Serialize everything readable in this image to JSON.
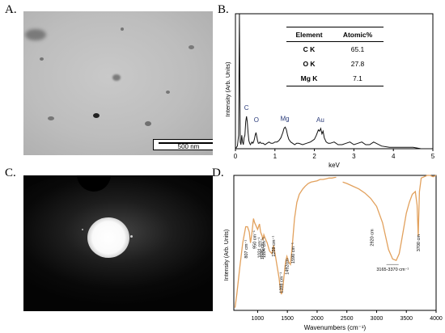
{
  "panels": {
    "a": {
      "letter": "A.",
      "scale_bar": "500 nm"
    },
    "b": {
      "letter": "B."
    },
    "c": {
      "letter": "C."
    },
    "d": {
      "letter": "D."
    }
  },
  "element_table": {
    "headers": [
      "Element",
      "Atomic%"
    ],
    "rows": [
      {
        "element": "C K",
        "value": "65.1"
      },
      {
        "element": "O K",
        "value": "27.8"
      },
      {
        "element": "Mg K",
        "value": "7.1"
      }
    ]
  },
  "colors": {
    "eds_line": "#111111",
    "ftir_line": "#e2a15d",
    "peak_label": "#2a3b7a"
  },
  "chart_data": [
    {
      "type": "line",
      "panel": "B",
      "xlabel": "keV",
      "ylabel": "Intensity (Arb. Units)",
      "xlim": [
        0,
        5
      ],
      "x_ticks": [
        "0",
        "1",
        "2",
        "3",
        "4",
        "5"
      ],
      "peak_labels": [
        {
          "label": "C",
          "x": 0.28,
          "y": 0.27
        },
        {
          "label": "O",
          "x": 0.53,
          "y": 0.18
        },
        {
          "label": "Mg",
          "x": 1.25,
          "y": 0.19
        },
        {
          "label": "Au",
          "x": 2.15,
          "y": 0.18
        }
      ],
      "x": [
        0.0,
        0.05,
        0.08,
        0.1,
        0.12,
        0.14,
        0.16,
        0.18,
        0.2,
        0.22,
        0.24,
        0.26,
        0.28,
        0.3,
        0.32,
        0.34,
        0.36,
        0.38,
        0.4,
        0.42,
        0.44,
        0.46,
        0.48,
        0.5,
        0.52,
        0.54,
        0.56,
        0.58,
        0.6,
        0.62,
        0.65,
        0.7,
        0.75,
        0.8,
        0.85,
        0.9,
        0.95,
        1.0,
        1.05,
        1.1,
        1.15,
        1.2,
        1.23,
        1.26,
        1.29,
        1.32,
        1.35,
        1.4,
        1.45,
        1.5,
        1.55,
        1.6,
        1.7,
        1.8,
        1.9,
        2.0,
        2.05,
        2.1,
        2.13,
        2.16,
        2.19,
        2.22,
        2.25,
        2.3,
        2.35,
        2.4,
        2.5,
        2.6,
        2.7,
        2.8,
        2.9,
        3.0,
        3.1,
        3.2,
        3.3,
        3.4,
        3.5,
        3.7,
        3.9,
        4.1,
        4.3,
        4.5,
        4.7,
        5.0
      ],
      "y": [
        0.0,
        0.02,
        0.1,
        1.0,
        0.05,
        0.03,
        0.1,
        0.05,
        0.03,
        0.08,
        0.1,
        0.2,
        0.24,
        0.2,
        0.12,
        0.06,
        0.04,
        0.03,
        0.04,
        0.05,
        0.04,
        0.05,
        0.07,
        0.1,
        0.12,
        0.09,
        0.06,
        0.04,
        0.04,
        0.05,
        0.04,
        0.04,
        0.03,
        0.04,
        0.05,
        0.04,
        0.04,
        0.05,
        0.05,
        0.06,
        0.08,
        0.12,
        0.15,
        0.16,
        0.14,
        0.1,
        0.07,
        0.05,
        0.04,
        0.03,
        0.04,
        0.04,
        0.03,
        0.04,
        0.05,
        0.07,
        0.1,
        0.14,
        0.13,
        0.15,
        0.11,
        0.13,
        0.08,
        0.05,
        0.04,
        0.04,
        0.05,
        0.03,
        0.03,
        0.04,
        0.05,
        0.03,
        0.04,
        0.05,
        0.03,
        0.03,
        0.05,
        0.02,
        0.01,
        0.01,
        0.01,
        0.01,
        0.0,
        0.0
      ]
    },
    {
      "type": "line",
      "panel": "D",
      "xlabel": "Wavenumbers (cm⁻¹)",
      "ylabel": "Intensity (Arb. Units)",
      "xlim": [
        600,
        4000
      ],
      "ylim": [
        0,
        1
      ],
      "x_ticks": [
        "1000",
        "1500",
        "2000",
        "2500",
        "3000",
        "3500",
        "4000"
      ],
      "peak_labels": [
        {
          "label": "807 cm⁻¹",
          "x": 807,
          "y": 0.54
        },
        {
          "label": "950 cm⁻¹",
          "x": 950,
          "y": 0.61
        },
        {
          "label": "1031 cm⁻¹",
          "x": 1031,
          "y": 0.56
        },
        {
          "label": "1076 cm⁻¹",
          "x": 1076,
          "y": 0.55
        },
        {
          "label": "1104 cm⁻¹",
          "x": 1104,
          "y": 0.56
        },
        {
          "label": "1269 cm⁻¹",
          "x": 1269,
          "y": 0.57
        },
        {
          "label": "1398 cm⁻¹",
          "x": 1398,
          "y": 0.3
        },
        {
          "label": "1492cm",
          "x": 1492,
          "y": 0.4
        },
        {
          "label": "1590 cm⁻¹",
          "x": 1590,
          "y": 0.52
        },
        {
          "label": "2920 cm",
          "x": 2920,
          "y": 0.62
        },
        {
          "label": "3165-3370 cm⁻¹",
          "x": 3270,
          "y": 0.34
        },
        {
          "label": "3700 cm",
          "x": 3700,
          "y": 0.58
        }
      ],
      "segments": [
        {
          "x": [
            620,
            650,
            700,
            750,
            800,
            830,
            860,
            880,
            900,
            930,
            950,
            970,
            1000,
            1031,
            1050,
            1076,
            1090,
            1104,
            1130,
            1160,
            1200,
            1240,
            1269,
            1300,
            1330,
            1360,
            1380,
            1398,
            1420,
            1450,
            1470,
            1492,
            1520,
            1550,
            1570,
            1590,
            1620,
            1660,
            1700,
            1760,
            1800,
            1850,
            1900,
            2000,
            2050,
            2100,
            2150,
            2200,
            2250,
            2300,
            2320
          ],
          "y": [
            0.02,
            0.12,
            0.32,
            0.5,
            0.62,
            0.62,
            0.58,
            0.5,
            0.56,
            0.68,
            0.65,
            0.63,
            0.6,
            0.64,
            0.58,
            0.55,
            0.52,
            0.56,
            0.53,
            0.5,
            0.44,
            0.42,
            0.48,
            0.4,
            0.32,
            0.24,
            0.16,
            0.12,
            0.15,
            0.28,
            0.36,
            0.4,
            0.36,
            0.34,
            0.42,
            0.52,
            0.68,
            0.8,
            0.86,
            0.9,
            0.92,
            0.94,
            0.95,
            0.96,
            0.97,
            0.97,
            0.975,
            0.98,
            0.98,
            0.985,
            0.985
          ]
        },
        {
          "x": [
            2430,
            2500,
            2600,
            2700,
            2800,
            2900,
            3000,
            3100,
            3150,
            3200,
            3270,
            3330,
            3380,
            3420,
            3460,
            3500,
            3550,
            3600,
            3650,
            3680,
            3700,
            3720,
            3750,
            3800,
            3850,
            3900,
            3950,
            4000
          ],
          "y": [
            0.95,
            0.94,
            0.92,
            0.9,
            0.87,
            0.83,
            0.77,
            0.65,
            0.55,
            0.45,
            0.38,
            0.37,
            0.42,
            0.52,
            0.62,
            0.72,
            0.8,
            0.86,
            0.88,
            0.78,
            0.55,
            0.88,
            0.98,
            0.99,
            1.0,
            1.0,
            0.99,
            1.0
          ]
        }
      ]
    }
  ]
}
